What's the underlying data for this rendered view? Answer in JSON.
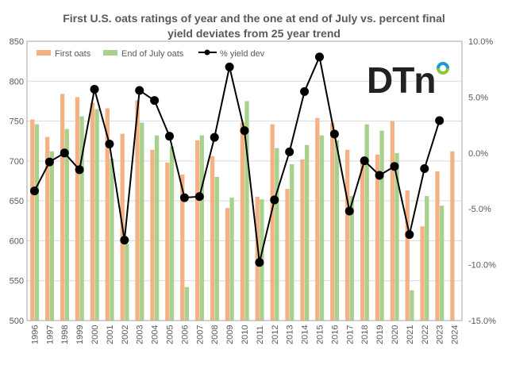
{
  "chart_data": {
    "type": "bar",
    "title": "First U.S. oats ratings of year and the one at end of July vs. percent final yield deviates from 25 year trend",
    "categories": [
      "1996",
      "1997",
      "1998",
      "1999",
      "2000",
      "2001",
      "2002",
      "2003",
      "2004",
      "2005",
      "2006",
      "2007",
      "2008",
      "2009",
      "2010",
      "2011",
      "2012",
      "2013",
      "2014",
      "2015",
      "2016",
      "2017",
      "2018",
      "2019",
      "2020",
      "2021",
      "2022",
      "2023",
      "2024"
    ],
    "series": [
      {
        "name": "First oats",
        "type": "bar",
        "axis": "left",
        "color": "#f4b183",
        "values": [
          752,
          730,
          784,
          780,
          773,
          766,
          734,
          776,
          714,
          698,
          683,
          726,
          706,
          641,
          748,
          655,
          746,
          665,
          702,
          754,
          748,
          714,
          700,
          708,
          750,
          663,
          618,
          687,
          712
        ]
      },
      {
        "name": "End of July oats",
        "type": "bar",
        "axis": "left",
        "color": "#a9d18e",
        "values": [
          746,
          712,
          740,
          756,
          765,
          703,
          596,
          748,
          732,
          718,
          542,
          732,
          680,
          654,
          775,
          652,
          716,
          696,
          720,
          732,
          726,
          656,
          746,
          738,
          710,
          538,
          656,
          644,
          null
        ]
      },
      {
        "name": "% yield dev",
        "type": "line",
        "axis": "right",
        "color": "#000000",
        "values": [
          -3.4,
          -0.8,
          0.0,
          -1.5,
          5.7,
          0.8,
          -7.8,
          5.6,
          4.7,
          1.5,
          -4.0,
          -3.9,
          1.4,
          7.7,
          2.0,
          -9.8,
          -4.2,
          0.1,
          5.5,
          8.6,
          1.7,
          -5.2,
          -0.7,
          -2.0,
          -1.2,
          -7.3,
          -1.4,
          2.9,
          null
        ]
      }
    ],
    "ylim": [
      500,
      850
    ],
    "yticks": [
      "500",
      "550",
      "600",
      "650",
      "700",
      "750",
      "800",
      "850"
    ],
    "y2lim": [
      -15,
      10
    ],
    "y2ticks": [
      "-15.0%",
      "-10.0%",
      "-5.0%",
      "0.0%",
      "5.0%",
      "10.0%"
    ],
    "legend": "top-left",
    "grid": true
  },
  "logo": "DTN"
}
